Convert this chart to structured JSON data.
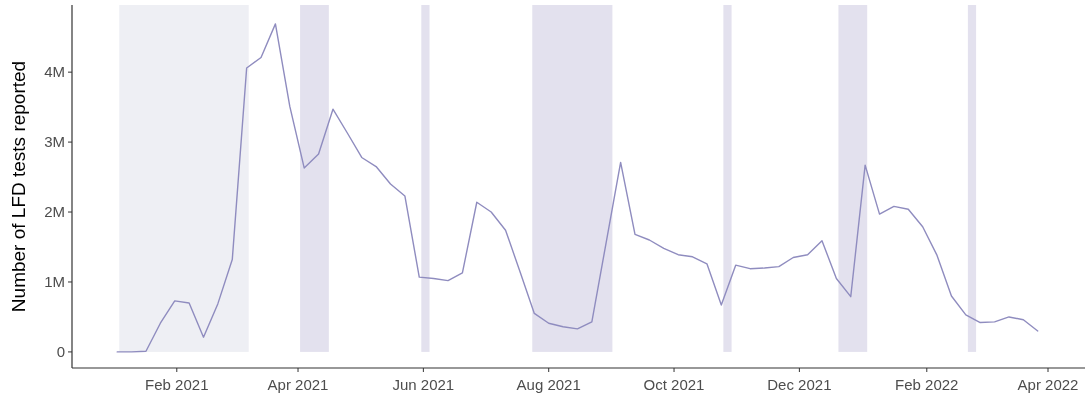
{
  "chart_data": {
    "type": "line",
    "ylabel": "Number of LFD tests reported",
    "x": [
      "2021-01-03",
      "2021-01-10",
      "2021-01-17",
      "2021-01-24",
      "2021-01-31",
      "2021-02-07",
      "2021-02-14",
      "2021-02-21",
      "2021-02-28",
      "2021-03-07",
      "2021-03-14",
      "2021-03-21",
      "2021-03-28",
      "2021-04-04",
      "2021-04-11",
      "2021-04-18",
      "2021-04-25",
      "2021-05-02",
      "2021-05-09",
      "2021-05-16",
      "2021-05-23",
      "2021-05-30",
      "2021-06-06",
      "2021-06-13",
      "2021-06-20",
      "2021-06-27",
      "2021-07-04",
      "2021-07-11",
      "2021-07-18",
      "2021-07-25",
      "2021-08-01",
      "2021-08-08",
      "2021-08-15",
      "2021-08-22",
      "2021-08-29",
      "2021-09-05",
      "2021-09-12",
      "2021-09-19",
      "2021-09-26",
      "2021-10-03",
      "2021-10-10",
      "2021-10-17",
      "2021-10-24",
      "2021-10-31",
      "2021-11-07",
      "2021-11-14",
      "2021-11-21",
      "2021-11-28",
      "2021-12-05",
      "2021-12-12",
      "2021-12-19",
      "2021-12-26",
      "2022-01-02",
      "2022-01-09",
      "2022-01-16",
      "2022-01-23",
      "2022-01-30",
      "2022-02-06",
      "2022-02-13",
      "2022-02-20",
      "2022-02-27",
      "2022-03-06",
      "2022-03-13",
      "2022-03-20",
      "2022-03-27"
    ],
    "series": [
      {
        "color": "#8f8cbf",
        "values": [
          0,
          0,
          10000,
          410000,
          730000,
          700000,
          210000,
          690000,
          1320000,
          4060000,
          4210000,
          4690000,
          3510000,
          2630000,
          2830000,
          3470000,
          3130000,
          2780000,
          2650000,
          2400000,
          2230000,
          1070000,
          1050000,
          1020000,
          1130000,
          2140000,
          2000000,
          1740000,
          1150000,
          550000,
          410000,
          360000,
          330000,
          430000,
          1570000,
          2710000,
          1680000,
          1600000,
          1480000,
          1390000,
          1360000,
          1260000,
          670000,
          1240000,
          1190000,
          1200000,
          1220000,
          1350000,
          1390000,
          1590000,
          1050000,
          790000,
          2670000,
          1970000,
          2080000,
          2040000,
          1790000,
          1380000,
          800000,
          530000,
          420000,
          430000,
          500000,
          460000,
          300000
        ]
      }
    ],
    "xlim": [
      "2020-12-12",
      "2022-04-19"
    ],
    "xticks": [
      {
        "value": "2021-02-01",
        "label": "Feb 2021"
      },
      {
        "value": "2021-04-01",
        "label": "Apr 2021"
      },
      {
        "value": "2021-06-01",
        "label": "Jun 2021"
      },
      {
        "value": "2021-08-01",
        "label": "Aug 2021"
      },
      {
        "value": "2021-10-01",
        "label": "Oct 2021"
      },
      {
        "value": "2021-12-01",
        "label": "Dec 2021"
      },
      {
        "value": "2022-02-01",
        "label": "Feb 2022"
      },
      {
        "value": "2022-04-01",
        "label": "Apr 2022"
      }
    ],
    "ylim": [
      -230000,
      4960000
    ],
    "yticks": [
      {
        "value": 0,
        "label": "0"
      },
      {
        "value": 1000000,
        "label": "1M"
      },
      {
        "value": 2000000,
        "label": "2M"
      },
      {
        "value": 3000000,
        "label": "3M"
      },
      {
        "value": 4000000,
        "label": "4M"
      }
    ],
    "bands": [
      {
        "axis": "x",
        "from": "2021-01-04",
        "to": "2021-03-08",
        "color": "#eeeff4"
      },
      {
        "axis": "x",
        "from": "2021-04-02",
        "to": "2021-04-16",
        "color": "#e3e1ee"
      },
      {
        "axis": "x",
        "from": "2021-05-31",
        "to": "2021-06-04",
        "color": "#e3e1ee"
      },
      {
        "axis": "x",
        "from": "2021-07-24",
        "to": "2021-09-01",
        "color": "#e3e1ee"
      },
      {
        "axis": "x",
        "from": "2021-10-25",
        "to": "2021-10-29",
        "color": "#e3e1ee"
      },
      {
        "axis": "x",
        "from": "2021-12-20",
        "to": "2022-01-03",
        "color": "#e3e1ee"
      },
      {
        "axis": "x",
        "from": "2022-02-21",
        "to": "2022-02-25",
        "color": "#e3e1ee"
      }
    ],
    "grid": false,
    "marker": "none",
    "line_style": "solid"
  }
}
